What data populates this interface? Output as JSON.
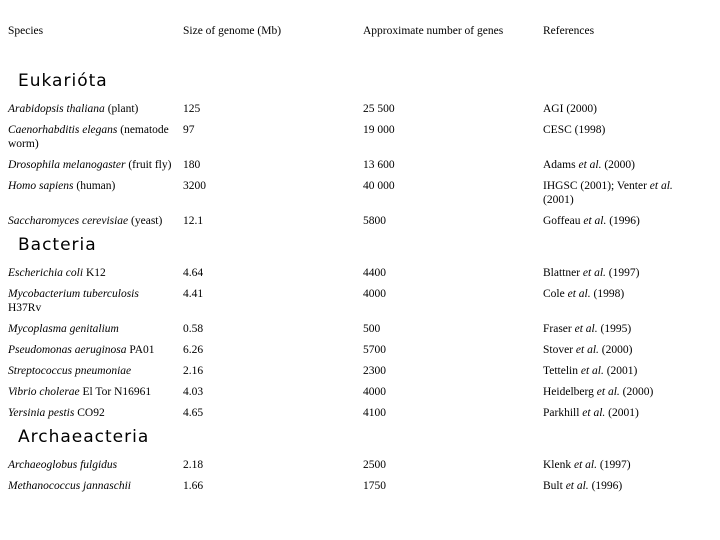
{
  "table": {
    "headers": [
      "Species",
      "Size of genome (Mb)",
      "Approximate number of genes",
      "References"
    ],
    "sections": [
      {
        "id": "eukariota",
        "title": "Eukarióta",
        "rows": [
          {
            "species": [
              {
                "t": "Arabidopsis thaliana",
                "i": true
              },
              {
                "t": " (plant)",
                "i": false
              }
            ],
            "size": "125",
            "genes": "25 500",
            "ref": [
              {
                "t": "AGI (2000)",
                "i": false
              }
            ]
          },
          {
            "species": [
              {
                "t": "Caenorhabditis elegans",
                "i": true
              },
              {
                "t": " (nematode worm)",
                "i": false
              }
            ],
            "size": "97",
            "genes": "19 000",
            "ref": [
              {
                "t": "CESC (1998)",
                "i": false
              }
            ]
          },
          {
            "species": [
              {
                "t": "Drosophila melanogaster",
                "i": true
              },
              {
                "t": " (fruit fly)",
                "i": false
              }
            ],
            "size": "180",
            "genes": "13 600",
            "ref": [
              {
                "t": "Adams ",
                "i": false
              },
              {
                "t": "et al.",
                "i": true
              },
              {
                "t": " (2000)",
                "i": false
              }
            ]
          },
          {
            "species": [
              {
                "t": "Homo sapiens",
                "i": true
              },
              {
                "t": " (human)",
                "i": false
              }
            ],
            "size": "3200",
            "genes": "40 000",
            "ref": [
              {
                "t": "IHGSC (2001); Venter ",
                "i": false
              },
              {
                "t": "et al.",
                "i": true
              },
              {
                "t": " (2001)",
                "i": false
              }
            ]
          },
          {
            "species": [
              {
                "t": "Saccharomyces cerevisiae",
                "i": true
              },
              {
                "t": " (yeast)",
                "i": false
              }
            ],
            "size": "12.1",
            "genes": "5800",
            "ref": [
              {
                "t": "Goffeau ",
                "i": false
              },
              {
                "t": "et al.",
                "i": true
              },
              {
                "t": " (1996)",
                "i": false
              }
            ]
          }
        ]
      },
      {
        "id": "bacteria",
        "title": "Bacteria",
        "rows": [
          {
            "species": [
              {
                "t": "Escherichia coli",
                "i": true
              },
              {
                "t": " K12",
                "i": false
              }
            ],
            "size": "4.64",
            "genes": "4400",
            "ref": [
              {
                "t": "Blattner ",
                "i": false
              },
              {
                "t": "et al.",
                "i": true
              },
              {
                "t": " (1997)",
                "i": false
              }
            ]
          },
          {
            "species": [
              {
                "t": "Mycobacterium tuberculosis",
                "i": true
              },
              {
                "t": " H37Rv",
                "i": false
              }
            ],
            "size": "4.41",
            "genes": "4000",
            "ref": [
              {
                "t": "Cole ",
                "i": false
              },
              {
                "t": "et al.",
                "i": true
              },
              {
                "t": " (1998)",
                "i": false
              }
            ]
          },
          {
            "species": [
              {
                "t": "Mycoplasma genitalium",
                "i": true
              }
            ],
            "size": "0.58",
            "genes": "500",
            "ref": [
              {
                "t": "Fraser ",
                "i": false
              },
              {
                "t": "et al.",
                "i": true
              },
              {
                "t": " (1995)",
                "i": false
              }
            ]
          },
          {
            "species": [
              {
                "t": "Pseudomonas aeruginosa",
                "i": true
              },
              {
                "t": " PA01",
                "i": false
              }
            ],
            "size": "6.26",
            "genes": "5700",
            "ref": [
              {
                "t": "Stover ",
                "i": false
              },
              {
                "t": "et al.",
                "i": true
              },
              {
                "t": " (2000)",
                "i": false
              }
            ]
          },
          {
            "species": [
              {
                "t": "Streptococcus pneumoniae",
                "i": true
              }
            ],
            "size": "2.16",
            "genes": "2300",
            "ref": [
              {
                "t": "Tettelin ",
                "i": false
              },
              {
                "t": "et al.",
                "i": true
              },
              {
                "t": " (2001)",
                "i": false
              }
            ]
          },
          {
            "species": [
              {
                "t": "Vibrio cholerae",
                "i": true
              },
              {
                "t": " El Tor N16961",
                "i": false
              }
            ],
            "size": "4.03",
            "genes": "4000",
            "ref": [
              {
                "t": "Heidelberg ",
                "i": false
              },
              {
                "t": "et al.",
                "i": true
              },
              {
                "t": " (2000)",
                "i": false
              }
            ]
          },
          {
            "species": [
              {
                "t": "Yersinia pestis",
                "i": true
              },
              {
                "t": " CO92",
                "i": false
              }
            ],
            "size": "4.65",
            "genes": "4100",
            "ref": [
              {
                "t": "Parkhill ",
                "i": false
              },
              {
                "t": "et al.",
                "i": true
              },
              {
                "t": " (2001)",
                "i": false
              }
            ]
          }
        ]
      },
      {
        "id": "archaeacteria",
        "title": "Archaeacteria",
        "rows": [
          {
            "species": [
              {
                "t": "Archaeoglobus fulgidus",
                "i": true
              }
            ],
            "size": "2.18",
            "genes": "2500",
            "ref": [
              {
                "t": "Klenk ",
                "i": false
              },
              {
                "t": "et al.",
                "i": true
              },
              {
                "t": " (1997)",
                "i": false
              }
            ]
          },
          {
            "species": [
              {
                "t": "Methanococcus jannaschii",
                "i": true
              }
            ],
            "size": "1.66",
            "genes": "1750",
            "ref": [
              {
                "t": "Bult ",
                "i": false
              },
              {
                "t": "et al.",
                "i": true
              },
              {
                "t": " (1996)",
                "i": false
              }
            ]
          }
        ]
      }
    ]
  }
}
